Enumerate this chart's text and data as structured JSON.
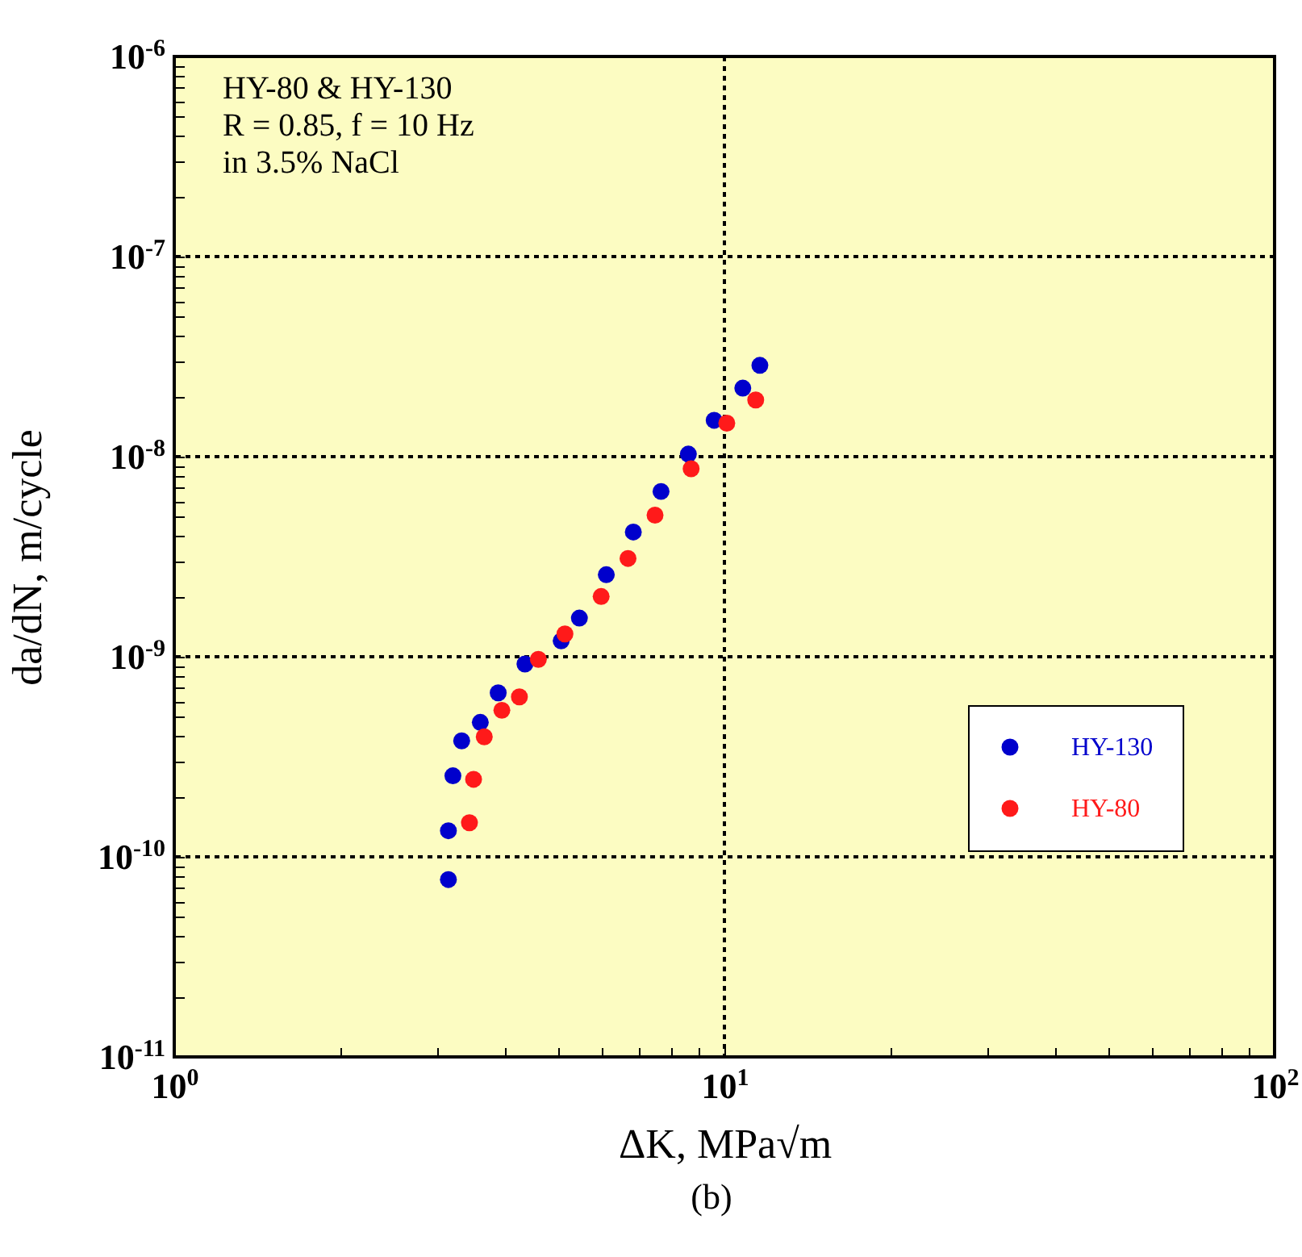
{
  "chart_data": {
    "type": "scatter",
    "xlabel": "ΔK, MPa√m",
    "ylabel": "da/dN, m/cycle",
    "annotations": [
      "HY-80 & HY-130",
      "R = 0.85, f = 10 Hz",
      "in 3.5% NaCl",
      "(b)"
    ],
    "log": "xy",
    "grid": true,
    "legend": "right",
    "marker": "circle",
    "xlim": [
      1,
      100
    ],
    "ylim": [
      1e-11,
      1e-06
    ],
    "xticks": [
      {
        "value": 1,
        "label": "10$^{0}$"
      },
      {
        "value": 2,
        "label": null
      },
      {
        "value": 3,
        "label": null
      },
      {
        "value": 4,
        "label": null
      },
      {
        "value": 5,
        "label": null
      },
      {
        "value": 6,
        "label": null
      },
      {
        "value": 7,
        "label": null
      },
      {
        "value": 8,
        "label": null
      },
      {
        "value": 9,
        "label": null
      },
      {
        "value": 10,
        "label": "10$^{1}$"
      },
      {
        "value": 20,
        "label": null
      },
      {
        "value": 30,
        "label": null
      },
      {
        "value": 40,
        "label": null
      },
      {
        "value": 50,
        "label": null
      },
      {
        "value": 60,
        "label": null
      },
      {
        "value": 70,
        "label": null
      },
      {
        "value": 80,
        "label": null
      },
      {
        "value": 90,
        "label": null
      },
      {
        "value": 100,
        "label": "10$^{2}$"
      }
    ],
    "yticks": [
      {
        "value": 1e-11,
        "label": "10$^{-11}$"
      },
      {
        "value": 2e-11,
        "label": null
      },
      {
        "value": 3e-11,
        "label": null
      },
      {
        "value": 4e-11,
        "label": null
      },
      {
        "value": 5e-11,
        "label": null
      },
      {
        "value": 6e-11,
        "label": null
      },
      {
        "value": 7e-11,
        "label": null
      },
      {
        "value": 8e-11,
        "label": null
      },
      {
        "value": 9e-11,
        "label": null
      },
      {
        "value": 1e-10,
        "label": "10$^{-10}$"
      },
      {
        "value": 2e-10,
        "label": null
      },
      {
        "value": 3e-10,
        "label": null
      },
      {
        "value": 4e-10,
        "label": null
      },
      {
        "value": 5e-10,
        "label": null
      },
      {
        "value": 6e-10,
        "label": null
      },
      {
        "value": 7e-10,
        "label": null
      },
      {
        "value": 8e-10,
        "label": null
      },
      {
        "value": 9e-10,
        "label": null
      },
      {
        "value": 1e-09,
        "label": "10$^{-9}$"
      },
      {
        "value": 2e-09,
        "label": null
      },
      {
        "value": 3e-09,
        "label": null
      },
      {
        "value": 4e-09,
        "label": null
      },
      {
        "value": 5e-09,
        "label": null
      },
      {
        "value": 6e-09,
        "label": null
      },
      {
        "value": 7e-09,
        "label": null
      },
      {
        "value": 8e-09,
        "label": null
      },
      {
        "value": 9e-09,
        "label": null
      },
      {
        "value": 1e-08,
        "label": "10$^{-8}$"
      },
      {
        "value": 2e-08,
        "label": null
      },
      {
        "value": 3e-08,
        "label": null
      },
      {
        "value": 4e-08,
        "label": null
      },
      {
        "value": 5e-08,
        "label": null
      },
      {
        "value": 6e-08,
        "label": null
      },
      {
        "value": 7e-08,
        "label": null
      },
      {
        "value": 8e-08,
        "label": null
      },
      {
        "value": 9e-08,
        "label": null
      },
      {
        "value": 1e-07,
        "label": "10$^{-7}$"
      },
      {
        "value": 2e-07,
        "label": null
      },
      {
        "value": 3e-07,
        "label": null
      },
      {
        "value": 4e-07,
        "label": null
      },
      {
        "value": 5e-07,
        "label": null
      },
      {
        "value": 6e-07,
        "label": null
      },
      {
        "value": 7e-07,
        "label": null
      },
      {
        "value": 8e-07,
        "label": null
      },
      {
        "value": 9e-07,
        "label": null
      },
      {
        "value": 1e-06,
        "label": "10$^{-6}$"
      }
    ],
    "series": [
      {
        "name": "HY-130",
        "color": "#0000cc",
        "x": [
          3.15,
          3.15,
          3.21,
          3.33,
          3.6,
          3.88,
          4.34,
          5.05,
          5.45,
          6.1,
          6.83,
          7.67,
          8.6,
          9.58,
          10.8,
          11.6
        ],
        "values": [
          7.7e-11,
          1.35e-10,
          2.54e-10,
          3.8e-10,
          4.7e-10,
          6.6e-10,
          9.2e-10,
          1.2e-09,
          1.56e-09,
          2.57e-09,
          4.2e-09,
          6.7e-09,
          1.03e-08,
          1.52e-08,
          2.2e-08,
          2.86e-08
        ]
      },
      {
        "name": "HY-80",
        "color": "#ff1a1a",
        "x": [
          3.44,
          3.5,
          3.66,
          3.94,
          4.24,
          4.59,
          5.13,
          5.97,
          6.68,
          7.48,
          8.7,
          10.1,
          11.4
        ],
        "values": [
          1.48e-10,
          2.44e-10,
          3.98e-10,
          5.4e-10,
          6.3e-10,
          9.7e-10,
          1.3e-09,
          2e-09,
          3.1e-09,
          5.1e-09,
          8.7e-09,
          1.47e-08,
          1.92e-08
        ]
      }
    ]
  }
}
